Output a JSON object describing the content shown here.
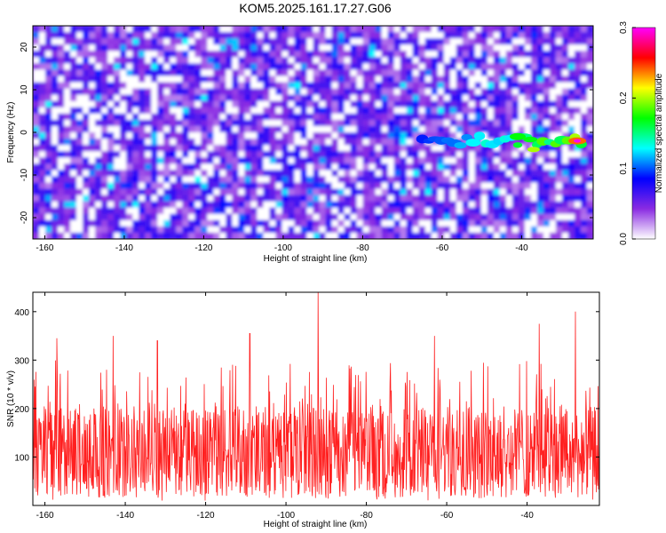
{
  "title": "KOM5.2025.161.17.27.G06",
  "chart_data": [
    {
      "type": "heatmap",
      "xlabel": "Height of straight line (km)",
      "ylabel": "Frequency (Hz)",
      "xlim": [
        -163,
        -22
      ],
      "ylim": [
        -25,
        25
      ],
      "xticks": [
        -160,
        -140,
        -120,
        -100,
        -80,
        -60,
        -40
      ],
      "yticks": [
        20,
        10,
        0,
        -10,
        -20
      ],
      "colorbar": {
        "label": "Normalized spectral amplitude",
        "range": [
          0.0,
          0.3
        ],
        "ticks": [
          0.0,
          0.1,
          0.2,
          0.3
        ],
        "colors": [
          "#ffffff",
          "#8a2be2",
          "#0000ff",
          "#00ffff",
          "#00ff00",
          "#ffff00",
          "#ff0000",
          "#ff00ff"
        ]
      },
      "background_level": 0.05,
      "ridge": {
        "frequency_hz": -2,
        "x_start": -65,
        "x_end": -24,
        "peak_x": -26,
        "peak_frequency_hz": -2,
        "peak_value": 0.3
      }
    },
    {
      "type": "line",
      "xlabel": "Height of straight line (km)",
      "ylabel": "SNR (10 * v/v)",
      "xlim": [
        -163,
        -22
      ],
      "ylim": [
        0,
        440
      ],
      "xticks": [
        -160,
        -140,
        -120,
        -100,
        -80,
        -60,
        -40
      ],
      "yticks": [
        100,
        200,
        300,
        400
      ],
      "color": "#ff2020",
      "baseline": 110,
      "typical_max": 300,
      "spikes": [
        {
          "x": -92,
          "y": 440
        },
        {
          "x": -28,
          "y": 400
        },
        {
          "x": -143,
          "y": 350
        },
        {
          "x": -109,
          "y": 355
        },
        {
          "x": -63,
          "y": 350
        },
        {
          "x": -37,
          "y": 375
        },
        {
          "x": -157,
          "y": 345
        },
        {
          "x": -132,
          "y": 340
        }
      ]
    }
  ]
}
